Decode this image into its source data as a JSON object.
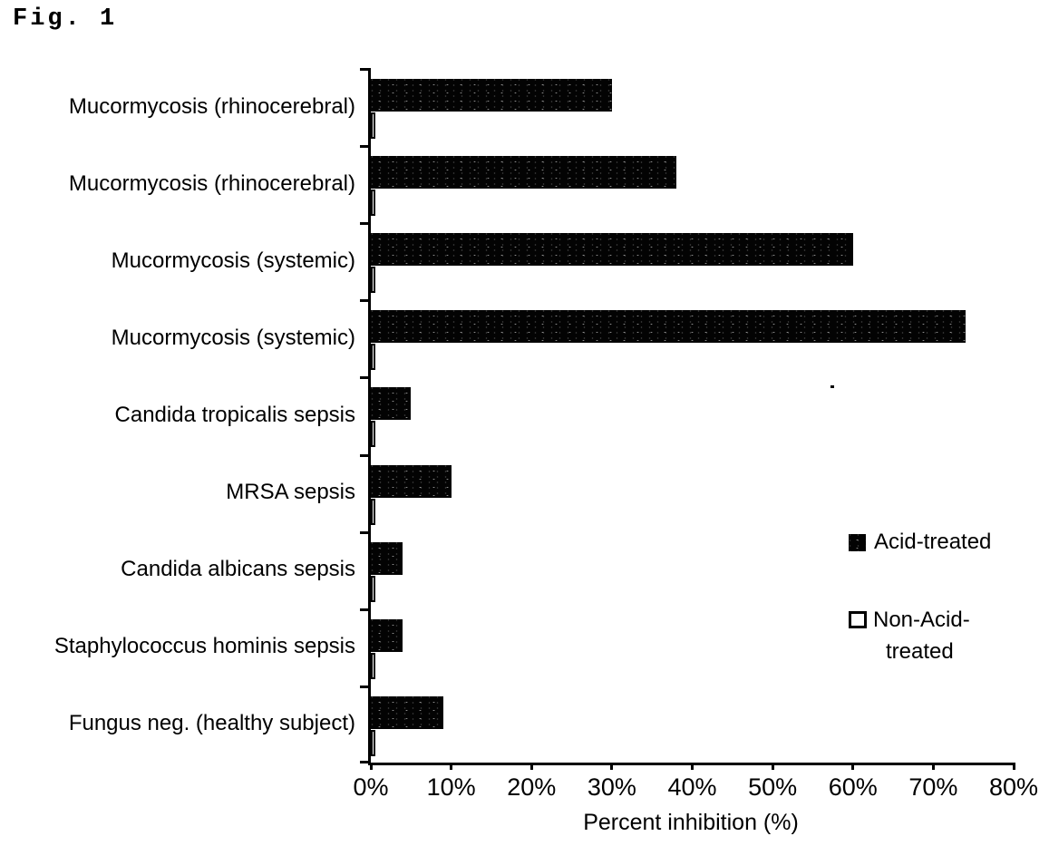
{
  "chart_data": {
    "type": "bar",
    "orientation": "horizontal",
    "title": "Fig. 1",
    "categories": [
      "Mucormycosis (rhinocerebral)",
      "Mucormycosis (rhinocerebral)",
      "Mucormycosis (systemic)",
      "Mucormycosis (systemic)",
      "Candida tropicalis sepsis",
      "MRSA sepsis",
      "Candida albicans sepsis",
      "Staphylococcus hominis sepsis",
      "Fungus neg. (healthy subject)"
    ],
    "series": [
      {
        "name": "Acid-treated",
        "color": "#000000",
        "style": "solid",
        "values": [
          30,
          38,
          60,
          74,
          5,
          10,
          4,
          4,
          9
        ]
      },
      {
        "name": "Non-Acid-treated",
        "color": "#ffffff",
        "style": "outlined",
        "values": [
          0.5,
          0.5,
          0.5,
          0.5,
          0.5,
          0.5,
          0.5,
          0.5,
          0.5
        ]
      }
    ],
    "xlabel": "Percent inhibition (%)",
    "ylabel": "",
    "xlim": [
      0,
      80
    ],
    "x_ticks": [
      "0%",
      "10%",
      "20%",
      "30%",
      "40%",
      "50%",
      "60%",
      "70%",
      "80%"
    ],
    "grid": false,
    "legend_position": "right-middle"
  },
  "legend": {
    "items": [
      {
        "label": "Acid-treated",
        "swatch": "solid-black-square"
      },
      {
        "label": "Non-Acid-treated",
        "lines": [
          "Non-Acid-",
          "treated"
        ],
        "swatch": "outlined-white-square"
      }
    ]
  }
}
